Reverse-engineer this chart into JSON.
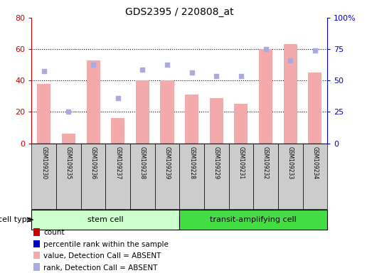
{
  "title": "GDS2395 / 220808_at",
  "samples": [
    "GSM109230",
    "GSM109235",
    "GSM109236",
    "GSM109237",
    "GSM109238",
    "GSM109239",
    "GSM109228",
    "GSM109229",
    "GSM109231",
    "GSM109232",
    "GSM109233",
    "GSM109234"
  ],
  "bar_values": [
    38,
    6,
    53,
    16,
    40,
    40,
    31,
    29,
    25,
    60,
    63,
    45
  ],
  "dot_values": [
    46,
    20,
    50,
    29,
    47,
    50,
    45,
    43,
    43,
    60,
    53,
    59
  ],
  "bar_color": "#F4AAAA",
  "dot_color": "#AAAADD",
  "left_ylim": [
    0,
    80
  ],
  "right_ylim": [
    0,
    100
  ],
  "left_yticks": [
    0,
    20,
    40,
    60,
    80
  ],
  "right_yticks": [
    0,
    25,
    50,
    75,
    100
  ],
  "right_yticklabels": [
    "0",
    "25",
    "50",
    "75",
    "100%"
  ],
  "left_yticklabels": [
    "0",
    "20",
    "40",
    "60",
    "80"
  ],
  "cell_types": [
    {
      "label": "stem cell",
      "start": 0,
      "end": 6,
      "color": "#CCFFCC"
    },
    {
      "label": "transit-amplifying cell",
      "start": 6,
      "end": 12,
      "color": "#44DD44"
    }
  ],
  "cell_type_label": "cell type",
  "legend_items": [
    {
      "color": "#CC0000",
      "label": "count"
    },
    {
      "color": "#0000CC",
      "label": "percentile rank within the sample"
    },
    {
      "color": "#F4AAAA",
      "label": "value, Detection Call = ABSENT"
    },
    {
      "color": "#AAAADD",
      "label": "rank, Detection Call = ABSENT"
    }
  ],
  "axis_left_color": "#CC0000",
  "axis_right_color": "#0000CC",
  "sample_box_color": "#CCCCCC",
  "gridline_color": "black"
}
